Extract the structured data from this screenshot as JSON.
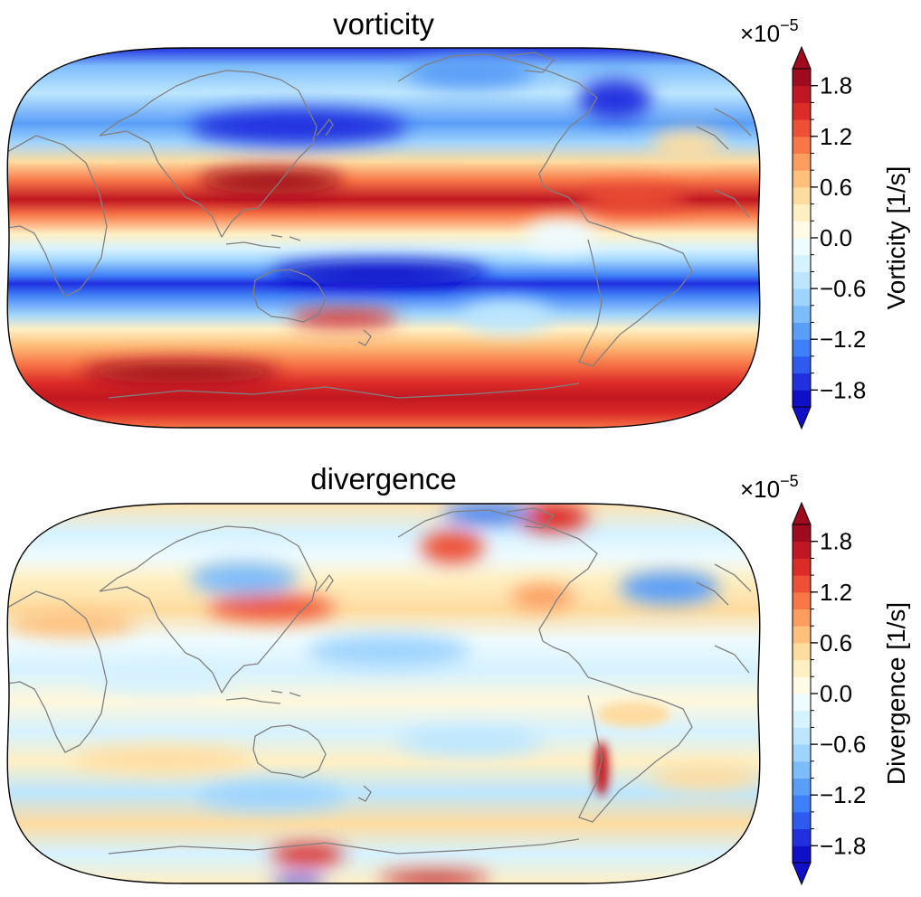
{
  "panels": [
    {
      "title": "vorticity",
      "field": "vorticity",
      "colorbar": {
        "label": "Vorticity [1/s]",
        "offset_base": "×10",
        "offset_exponent": "−5",
        "ticks": [
          "1.8",
          "1.2",
          "0.6",
          "0.0",
          "−0.6",
          "−1.2",
          "−1.8"
        ]
      }
    },
    {
      "title": "divergence",
      "field": "divergence",
      "colorbar": {
        "label": "Divergence [1/s]",
        "offset_base": "×10",
        "offset_exponent": "−5",
        "ticks": [
          "1.8",
          "1.2",
          "0.6",
          "0.0",
          "−0.6",
          "−1.2",
          "−1.8"
        ]
      }
    }
  ],
  "map": {
    "projection": "Robinson",
    "central_longitude": 180,
    "coastline_color": "#808080"
  },
  "colormap": {
    "name": "RdYlBu_r",
    "levels_min": -2.0,
    "levels_max": 2.0,
    "n_levels": 20,
    "extend": "both",
    "colors": [
      "#1010c8",
      "#2030e0",
      "#2f5af0",
      "#3f7ff7",
      "#5a9ef8",
      "#7dbcfb",
      "#9fd4fd",
      "#bde6fe",
      "#d6f2ff",
      "#eefbff",
      "#fffbe6",
      "#fff0c4",
      "#fedca0",
      "#fec07c",
      "#fc9d60",
      "#f87748",
      "#ee5036",
      "#dd2c28",
      "#c01722",
      "#9e0a1e"
    ]
  }
}
